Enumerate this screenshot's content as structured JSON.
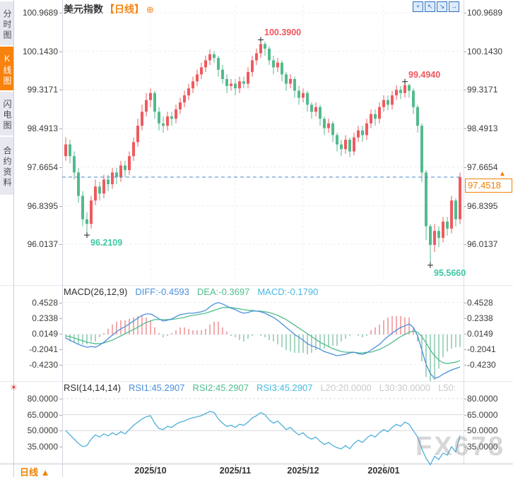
{
  "header": {
    "title": "美元指数",
    "period_tag": "【日线】",
    "expand_icon": "⊕",
    "toolbar_icons": [
      {
        "name": "crosshair-icon",
        "glyph": "+"
      },
      {
        "name": "fit-chart-icon",
        "glyph": "↖"
      },
      {
        "name": "zoom-chart-icon",
        "glyph": "↘"
      },
      {
        "name": "pan-right-icon",
        "glyph": "→"
      }
    ]
  },
  "sidebar": {
    "tabs": [
      {
        "label": "分时图",
        "active": false
      },
      {
        "label": "K线图",
        "active": true
      },
      {
        "label": "闪电图",
        "active": false
      },
      {
        "label": "合约资料",
        "active": false
      }
    ]
  },
  "misc": {
    "live_icon": "☀"
  },
  "price_tag": {
    "value": "97.4518",
    "arrow": "▲"
  },
  "footer": {
    "period_label": "日线",
    "arrow": "▲"
  },
  "watermark": "FX678",
  "colors": {
    "up": "#ef5a5f",
    "down": "#54ba8d",
    "accent": "#f7820d",
    "diff_blue": "#4a8fdb",
    "dea_green": "#4fbd8c",
    "macd_cyan": "#49b9e0",
    "muted": "#c9c9c9",
    "rsi_line": "#4fafd9",
    "price_line": "#4a86c8",
    "annotation_red": "#f2555c",
    "annotation_green": "#3fc7a4",
    "hist_red": "#e4595f",
    "hist_green": "#4fae80"
  },
  "chart_data": [
    {
      "type": "candlestick",
      "instrument": "美元指数",
      "period": "日线",
      "y_axis_labels": [
        "100.9689",
        "100.1430",
        "99.3171",
        "98.4913",
        "97.6654",
        "96.8395",
        "96.0137"
      ],
      "x_ticks": [
        {
          "label": "2025/10",
          "index": 20
        },
        {
          "label": "2025/11",
          "index": 40
        },
        {
          "label": "2025/12",
          "index": 56
        },
        {
          "label": "2026/01",
          "index": 75
        }
      ],
      "current_price": 97.4518,
      "annotations": [
        {
          "text": "96.2109",
          "index": 5,
          "value": 96.2109,
          "pos": "low",
          "color": "green"
        },
        {
          "text": "100.3900",
          "index": 46,
          "value": 100.39,
          "pos": "high",
          "color": "red"
        },
        {
          "text": "99.4940",
          "index": 80,
          "value": 99.494,
          "pos": "high",
          "color": "red"
        },
        {
          "text": "95.5660",
          "index": 86,
          "value": 95.566,
          "pos": "low",
          "color": "green"
        }
      ],
      "candles": [
        [
          97.9,
          98.3,
          97.8,
          98.15
        ],
        [
          98.15,
          98.25,
          97.75,
          97.9
        ],
        [
          97.9,
          98.0,
          97.4,
          97.55
        ],
        [
          97.55,
          97.65,
          96.9,
          97.05
        ],
        [
          97.05,
          97.15,
          96.4,
          96.55
        ],
        [
          96.55,
          96.7,
          96.2109,
          96.45
        ],
        [
          96.45,
          97.05,
          96.35,
          96.95
        ],
        [
          96.95,
          97.4,
          96.85,
          97.25
        ],
        [
          97.25,
          97.35,
          96.95,
          97.1
        ],
        [
          97.1,
          97.5,
          97.0,
          97.4
        ],
        [
          97.4,
          97.5,
          97.15,
          97.3
        ],
        [
          97.3,
          97.65,
          97.2,
          97.55
        ],
        [
          97.55,
          97.65,
          97.3,
          97.45
        ],
        [
          97.45,
          97.8,
          97.35,
          97.7
        ],
        [
          97.7,
          97.8,
          97.45,
          97.6
        ],
        [
          97.6,
          98.0,
          97.5,
          97.9
        ],
        [
          97.9,
          98.3,
          97.8,
          98.2
        ],
        [
          98.2,
          98.7,
          98.1,
          98.55
        ],
        [
          98.55,
          99.0,
          98.45,
          98.85
        ],
        [
          98.85,
          99.25,
          98.75,
          99.1
        ],
        [
          99.1,
          99.35,
          98.95,
          99.25
        ],
        [
          99.25,
          99.3,
          98.7,
          98.85
        ],
        [
          98.85,
          98.95,
          98.45,
          98.6
        ],
        [
          98.6,
          98.75,
          98.4,
          98.55
        ],
        [
          98.55,
          98.85,
          98.45,
          98.75
        ],
        [
          98.75,
          98.85,
          98.55,
          98.7
        ],
        [
          98.7,
          99.0,
          98.6,
          98.9
        ],
        [
          98.9,
          99.15,
          98.8,
          99.05
        ],
        [
          99.05,
          99.3,
          98.95,
          99.2
        ],
        [
          99.2,
          99.45,
          99.1,
          99.35
        ],
        [
          99.35,
          99.6,
          99.25,
          99.5
        ],
        [
          99.5,
          99.75,
          99.4,
          99.65
        ],
        [
          99.65,
          99.9,
          99.55,
          99.8
        ],
        [
          99.8,
          100.05,
          99.7,
          99.95
        ],
        [
          99.95,
          100.18,
          99.85,
          100.08
        ],
        [
          100.08,
          100.15,
          99.9,
          100.0
        ],
        [
          100.0,
          100.05,
          99.6,
          99.75
        ],
        [
          99.75,
          99.85,
          99.45,
          99.55
        ],
        [
          99.55,
          99.65,
          99.25,
          99.4
        ],
        [
          99.4,
          99.55,
          99.3,
          99.45
        ],
        [
          99.45,
          99.55,
          99.2,
          99.35
        ],
        [
          99.35,
          99.6,
          99.25,
          99.5
        ],
        [
          99.5,
          99.6,
          99.35,
          99.45
        ],
        [
          99.45,
          99.8,
          99.35,
          99.7
        ],
        [
          99.7,
          100.05,
          99.6,
          99.95
        ],
        [
          99.95,
          100.2,
          99.85,
          100.1
        ],
        [
          100.1,
          100.39,
          100.0,
          100.3
        ],
        [
          100.3,
          100.35,
          100.05,
          100.2
        ],
        [
          100.2,
          100.25,
          99.85,
          99.95
        ],
        [
          99.95,
          100.05,
          99.65,
          99.8
        ],
        [
          99.8,
          100.0,
          99.7,
          99.9
        ],
        [
          99.9,
          99.95,
          99.5,
          99.65
        ],
        [
          99.65,
          99.7,
          99.3,
          99.45
        ],
        [
          99.45,
          99.65,
          99.35,
          99.55
        ],
        [
          99.55,
          99.6,
          99.15,
          99.3
        ],
        [
          99.3,
          99.4,
          99.0,
          99.15
        ],
        [
          99.15,
          99.35,
          99.05,
          99.25
        ],
        [
          99.25,
          99.3,
          98.85,
          99.0
        ],
        [
          99.0,
          99.05,
          98.7,
          98.85
        ],
        [
          98.85,
          99.05,
          98.75,
          98.95
        ],
        [
          98.95,
          99.0,
          98.55,
          98.7
        ],
        [
          98.7,
          98.75,
          98.35,
          98.5
        ],
        [
          98.5,
          98.7,
          98.4,
          98.6
        ],
        [
          98.6,
          98.65,
          98.2,
          98.35
        ],
        [
          98.35,
          98.4,
          98.0,
          98.15
        ],
        [
          98.15,
          98.25,
          97.9,
          98.05
        ],
        [
          98.05,
          98.35,
          97.95,
          98.25
        ],
        [
          98.25,
          98.3,
          97.88,
          98.0
        ],
        [
          98.0,
          98.4,
          97.92,
          98.3
        ],
        [
          98.3,
          98.55,
          98.2,
          98.45
        ],
        [
          98.45,
          98.55,
          98.2,
          98.35
        ],
        [
          98.35,
          98.7,
          98.25,
          98.6
        ],
        [
          98.6,
          98.9,
          98.5,
          98.8
        ],
        [
          98.8,
          98.9,
          98.55,
          98.7
        ],
        [
          98.7,
          99.05,
          98.6,
          98.95
        ],
        [
          98.95,
          99.2,
          98.85,
          99.1
        ],
        [
          99.1,
          99.2,
          98.88,
          99.0
        ],
        [
          99.0,
          99.3,
          98.9,
          99.2
        ],
        [
          99.2,
          99.42,
          99.1,
          99.32
        ],
        [
          99.32,
          99.4,
          99.12,
          99.25
        ],
        [
          99.25,
          99.494,
          99.15,
          99.42
        ],
        [
          99.42,
          99.45,
          99.15,
          99.3
        ],
        [
          99.3,
          99.35,
          98.8,
          98.95
        ],
        [
          98.95,
          99.0,
          98.4,
          98.55
        ],
        [
          98.55,
          98.6,
          97.35,
          97.55
        ],
        [
          97.55,
          97.6,
          96.1,
          96.4
        ],
        [
          96.4,
          96.45,
          95.566,
          96.0
        ],
        [
          96.0,
          96.45,
          95.85,
          96.3
        ],
        [
          96.3,
          96.4,
          95.95,
          96.15
        ],
        [
          96.15,
          96.6,
          96.05,
          96.5
        ],
        [
          96.5,
          96.6,
          96.2,
          96.35
        ],
        [
          96.35,
          97.05,
          96.25,
          96.95
        ],
        [
          96.95,
          97.0,
          96.4,
          96.55
        ],
        [
          96.55,
          97.55,
          96.45,
          97.4518
        ]
      ]
    },
    {
      "type": "macd",
      "label": "MACD(26,12,9)",
      "legend": [
        {
          "text": "DIFF:-0.4593",
          "color_key": "diff_blue"
        },
        {
          "text": "DEA:-0.3697",
          "color_key": "dea_green"
        },
        {
          "text": "MACD:-0.1790",
          "color_key": "macd_cyan"
        }
      ],
      "y_axis_labels": [
        "0.4528",
        "0.2338",
        "0.0149",
        "-0.2041",
        "-0.4230"
      ],
      "diff": [
        -0.05,
        -0.08,
        -0.11,
        -0.14,
        -0.16,
        -0.18,
        -0.17,
        -0.18,
        -0.15,
        -0.11,
        -0.06,
        -0.01,
        0.04,
        0.08,
        0.11,
        0.15,
        0.19,
        0.23,
        0.27,
        0.29,
        0.29,
        0.26,
        0.22,
        0.19,
        0.2,
        0.22,
        0.25,
        0.28,
        0.29,
        0.3,
        0.3,
        0.31,
        0.32,
        0.34,
        0.39,
        0.43,
        0.45,
        0.43,
        0.4,
        0.37,
        0.35,
        0.32,
        0.3,
        0.31,
        0.33,
        0.33,
        0.32,
        0.3,
        0.27,
        0.24,
        0.2,
        0.15,
        0.1,
        0.05,
        0.0,
        -0.04,
        -0.08,
        -0.13,
        -0.16,
        -0.18,
        -0.21,
        -0.24,
        -0.26,
        -0.28,
        -0.3,
        -0.29,
        -0.28,
        -0.26,
        -0.25,
        -0.27,
        -0.28,
        -0.26,
        -0.22,
        -0.18,
        -0.14,
        -0.08,
        -0.03,
        0.02,
        0.06,
        0.1,
        0.12,
        0.15,
        0.1,
        -0.02,
        -0.22,
        -0.42,
        -0.55,
        -0.62,
        -0.6,
        -0.56,
        -0.53,
        -0.5,
        -0.48,
        -0.4593
      ],
      "dea": [
        -0.02,
        -0.03,
        -0.05,
        -0.07,
        -0.09,
        -0.11,
        -0.12,
        -0.13,
        -0.13,
        -0.12,
        -0.1,
        -0.08,
        -0.05,
        -0.02,
        0.01,
        0.04,
        0.07,
        0.1,
        0.14,
        0.17,
        0.19,
        0.21,
        0.21,
        0.21,
        0.21,
        0.21,
        0.22,
        0.23,
        0.24,
        0.26,
        0.27,
        0.28,
        0.29,
        0.3,
        0.32,
        0.34,
        0.36,
        0.38,
        0.38,
        0.38,
        0.37,
        0.36,
        0.35,
        0.34,
        0.34,
        0.33,
        0.33,
        0.32,
        0.31,
        0.29,
        0.27,
        0.24,
        0.21,
        0.17,
        0.13,
        0.09,
        0.05,
        0.01,
        -0.03,
        -0.07,
        -0.11,
        -0.14,
        -0.17,
        -0.2,
        -0.22,
        -0.24,
        -0.25,
        -0.25,
        -0.25,
        -0.26,
        -0.26,
        -0.25,
        -0.25,
        -0.23,
        -0.21,
        -0.18,
        -0.15,
        -0.11,
        -0.07,
        -0.03,
        0.0,
        0.03,
        0.05,
        0.03,
        -0.03,
        -0.12,
        -0.22,
        -0.3,
        -0.36,
        -0.4,
        -0.41,
        -0.4,
        -0.39,
        -0.3697
      ]
    },
    {
      "type": "rsi",
      "label": "RSI(14,14,14)",
      "legend": [
        {
          "text": "RSI1:45.2907",
          "color_key": "diff_blue"
        },
        {
          "text": "RSI2:45.2907",
          "color_key": "dea_green"
        },
        {
          "text": "RSI3:45.2907",
          "color_key": "macd_cyan"
        },
        {
          "text": "L20:20.0000",
          "color_key": "muted"
        },
        {
          "text": "L30:30.0000",
          "color_key": "muted"
        },
        {
          "text": "L50:",
          "color_key": "muted"
        }
      ],
      "y_axis_labels": [
        "80.0000",
        "65.0000",
        "50.0000",
        "35.0000"
      ],
      "values": [
        50,
        46,
        42,
        38,
        35,
        36,
        42,
        46,
        44,
        47,
        45,
        48,
        46,
        49,
        47,
        51,
        55,
        58,
        61,
        63,
        64,
        57,
        52,
        51,
        54,
        53,
        56,
        58,
        59,
        61,
        62,
        63,
        64,
        66,
        68,
        67,
        61,
        57,
        54,
        55,
        53,
        56,
        55,
        58,
        62,
        64,
        67,
        65,
        60,
        57,
        59,
        55,
        51,
        53,
        49,
        46,
        48,
        44,
        42,
        44,
        40,
        37,
        39,
        36,
        34,
        33,
        36,
        33,
        38,
        41,
        39,
        43,
        46,
        44,
        48,
        51,
        49,
        53,
        56,
        54,
        58,
        56,
        50,
        44,
        33,
        24,
        18,
        26,
        23,
        29,
        27,
        35,
        30,
        45.29
      ]
    }
  ]
}
